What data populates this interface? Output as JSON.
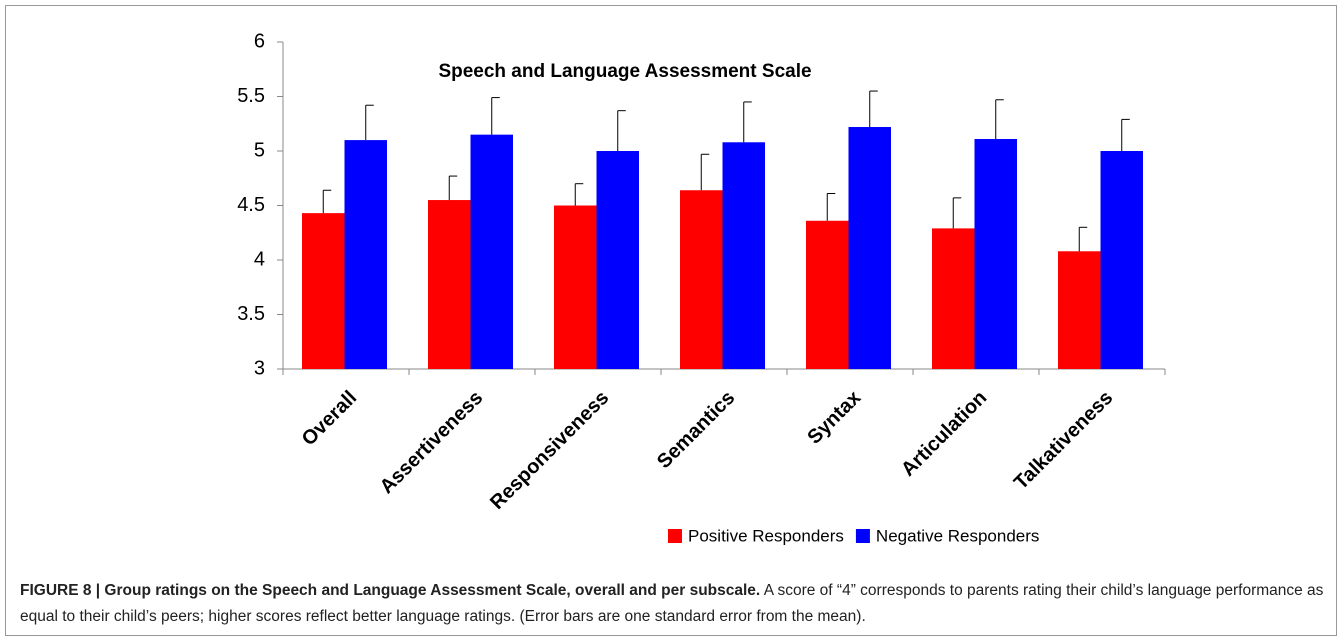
{
  "chart_data": {
    "type": "bar",
    "title": "Speech and Language Assessment Scale",
    "categories": [
      "Overall",
      "Assertiveness",
      "Responsiveness",
      "Semantics",
      "Syntax",
      "Articulation",
      "Talkativeness"
    ],
    "series": [
      {
        "name": "Positive Responders",
        "color": "#ff0000",
        "values": [
          4.43,
          4.55,
          4.5,
          4.64,
          4.36,
          4.29,
          4.08
        ],
        "errors": [
          0.21,
          0.22,
          0.2,
          0.33,
          0.25,
          0.28,
          0.22
        ]
      },
      {
        "name": "Negative Responders",
        "color": "#0000ff",
        "values": [
          5.1,
          5.15,
          5.0,
          5.08,
          5.22,
          5.11,
          5.0
        ],
        "errors": [
          0.32,
          0.34,
          0.37,
          0.37,
          0.33,
          0.36,
          0.29
        ]
      }
    ],
    "ylim": [
      3,
      6
    ],
    "yticks": [
      3,
      3.5,
      4,
      4.5,
      5,
      5.5,
      6
    ],
    "grid": false,
    "legend": "bottom-right"
  },
  "caption": {
    "label": "FIGURE 8 | Group ratings on the Speech and Language Assessment Scale, overall and per subscale.",
    "text": "A score of “4” corresponds to parents rating their child’s language performance as equal to their child’s peers; higher scores reflect better language ratings. (Error bars are one standard error from the mean)."
  }
}
